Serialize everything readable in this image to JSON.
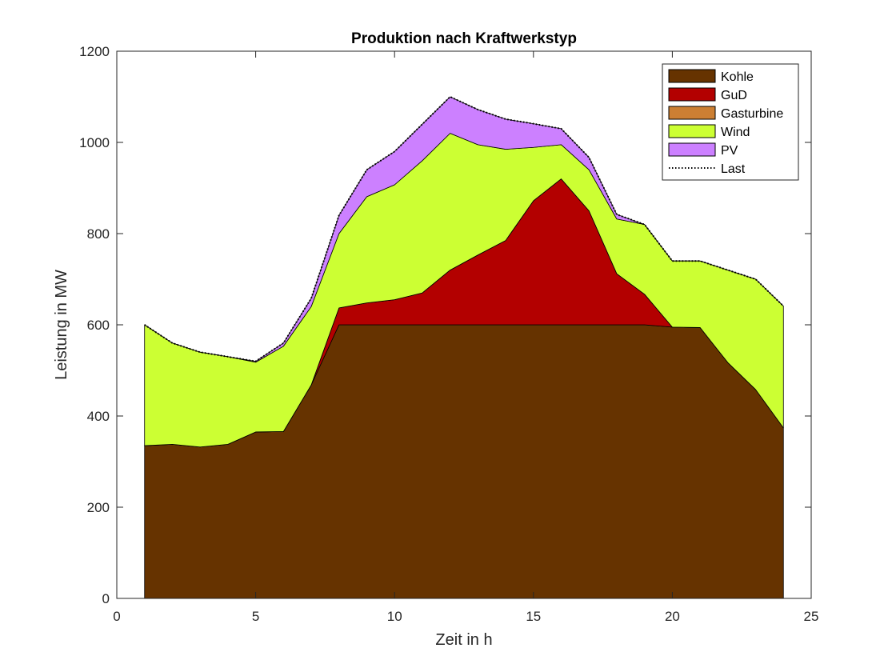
{
  "chart_data": {
    "type": "area",
    "stacked": true,
    "title": "Produktion nach Kraftwerkstyp",
    "xlabel": "Zeit in h",
    "ylabel": "Leistung in MW",
    "xlim": [
      0,
      25
    ],
    "ylim": [
      0,
      1200
    ],
    "xticks": [
      0,
      5,
      10,
      15,
      20,
      25
    ],
    "yticks": [
      0,
      200,
      400,
      600,
      800,
      1000,
      1200
    ],
    "grid": false,
    "legend_position": "top-right",
    "x": [
      1,
      2,
      3,
      4,
      5,
      6,
      7,
      8,
      9,
      10,
      11,
      12,
      13,
      14,
      15,
      16,
      17,
      18,
      19,
      20,
      21,
      22,
      23,
      24
    ],
    "series": [
      {
        "name": "Kohle",
        "color": "#663300",
        "values": [
          335,
          338,
          332,
          338,
          365,
          366,
          468,
          600,
          600,
          600,
          600,
          600,
          600,
          600,
          600,
          600,
          600,
          600,
          600,
          595,
          594,
          517,
          458,
          374
        ]
      },
      {
        "name": "GuD",
        "color": "#b30000",
        "values": [
          0,
          0,
          0,
          0,
          0,
          0,
          0,
          37,
          48,
          55,
          70,
          120,
          153,
          185,
          272,
          320,
          250,
          112,
          67,
          0,
          0,
          0,
          0,
          0
        ]
      },
      {
        "name": "Gasturbine",
        "color": "#cc7f33",
        "values": [
          0,
          0,
          0,
          0,
          0,
          0,
          0,
          0,
          0,
          0,
          0,
          0,
          0,
          0,
          0,
          0,
          0,
          0,
          0,
          0,
          0,
          0,
          0,
          0
        ]
      },
      {
        "name": "Wind",
        "color": "#ccff33",
        "values": [
          265,
          222,
          208,
          192,
          153,
          187,
          172,
          163,
          233,
          252,
          290,
          300,
          242,
          200,
          117,
          75,
          90,
          120,
          153,
          145,
          146,
          203,
          242,
          267
        ]
      },
      {
        "name": "PV",
        "color": "#cc80ff",
        "values": [
          0,
          0,
          0,
          0,
          2,
          7,
          18,
          40,
          59,
          73,
          80,
          80,
          77,
          66,
          52,
          35,
          27,
          10,
          0,
          0,
          0,
          0,
          0,
          0
        ]
      }
    ],
    "line_series": {
      "name": "Last",
      "color": "#000000",
      "style": "dotted",
      "values": [
        600,
        560,
        540,
        530,
        520,
        560,
        658,
        840,
        940,
        980,
        1040,
        1100,
        1072,
        1051,
        1041,
        1030,
        967,
        842,
        820,
        740,
        740,
        720,
        700,
        641
      ]
    }
  }
}
